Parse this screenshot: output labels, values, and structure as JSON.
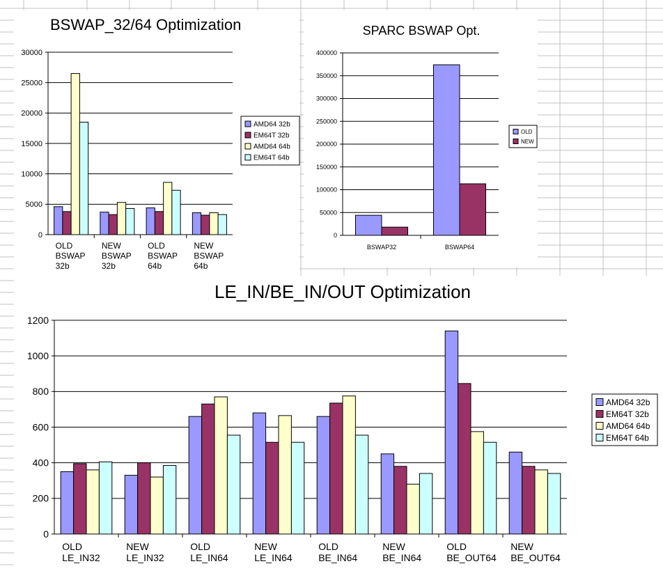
{
  "palette": {
    "amd64_32b": "#9999FF",
    "em64t_32b": "#993366",
    "amd64_64b": "#FFFFCC",
    "em64t_64b": "#CCFFFF",
    "grid": "#000000",
    "sheet_grid": "#c0c0c0"
  },
  "chart_data": [
    {
      "type": "bar",
      "title": "BSWAP_32/64 Optimization",
      "categories": [
        [
          "OLD",
          "BSWAP",
          "32b"
        ],
        [
          "NEW",
          "BSWAP",
          "32b"
        ],
        [
          "OLD",
          "BSWAP",
          "64b"
        ],
        [
          "NEW",
          "BSWAP",
          "64b"
        ]
      ],
      "series": [
        {
          "name": "AMD64 32b",
          "color": "#9999FF",
          "values": [
            4600,
            3700,
            4400,
            3600
          ]
        },
        {
          "name": "EM64T 32b",
          "color": "#993366",
          "values": [
            3800,
            3300,
            3800,
            3200
          ]
        },
        {
          "name": "AMD64 64b",
          "color": "#FFFFCC",
          "values": [
            26500,
            5300,
            8600,
            3600
          ]
        },
        {
          "name": "EM64T 64b",
          "color": "#CCFFFF",
          "values": [
            18500,
            4300,
            7300,
            3300
          ]
        }
      ],
      "yticks": [
        "0",
        "5000",
        "10000",
        "15000",
        "20000",
        "25000",
        "30000"
      ],
      "ylim": [
        0,
        30000
      ],
      "grid": true,
      "legend": "right"
    },
    {
      "type": "bar",
      "title": "SPARC BSWAP Opt.",
      "categories": [
        [
          "BSWAP32"
        ],
        [
          "BSWAP64"
        ]
      ],
      "series": [
        {
          "name": "OLD",
          "color": "#9999FF",
          "values": [
            44000,
            374000
          ]
        },
        {
          "name": "NEW",
          "color": "#993366",
          "values": [
            18000,
            113000
          ]
        }
      ],
      "yticks": [
        "0",
        "50000",
        "100000",
        "150000",
        "200000",
        "250000",
        "300000",
        "350000",
        "400000"
      ],
      "ylim": [
        0,
        400000
      ],
      "grid": true,
      "legend": "right"
    },
    {
      "type": "bar",
      "title": "LE_IN/BE_IN/OUT Optimization",
      "categories": [
        [
          "OLD",
          "LE_IN32"
        ],
        [
          "NEW",
          "LE_IN32"
        ],
        [
          "OLD",
          "LE_IN64"
        ],
        [
          "NEW",
          "LE_IN64"
        ],
        [
          "OLD",
          "BE_IN64"
        ],
        [
          "NEW",
          "BE_IN64"
        ],
        [
          "OLD",
          "BE_OUT64"
        ],
        [
          "NEW",
          "BE_OUT64"
        ]
      ],
      "series": [
        {
          "name": "AMD64 32b",
          "color": "#9999FF",
          "values": [
            350,
            330,
            660,
            680,
            660,
            450,
            1140,
            460
          ]
        },
        {
          "name": "EM64T 32b",
          "color": "#993366",
          "values": [
            395,
            400,
            730,
            515,
            735,
            380,
            845,
            380
          ]
        },
        {
          "name": "AMD64 64b",
          "color": "#FFFFCC",
          "values": [
            360,
            320,
            770,
            665,
            775,
            280,
            575,
            360
          ]
        },
        {
          "name": "EM64T 64b",
          "color": "#CCFFFF",
          "values": [
            405,
            385,
            555,
            515,
            555,
            340,
            515,
            340
          ]
        }
      ],
      "yticks": [
        "0",
        "200",
        "400",
        "600",
        "800",
        "1000",
        "1200"
      ],
      "ylim": [
        0,
        1200
      ],
      "grid": true,
      "legend": "right"
    }
  ]
}
